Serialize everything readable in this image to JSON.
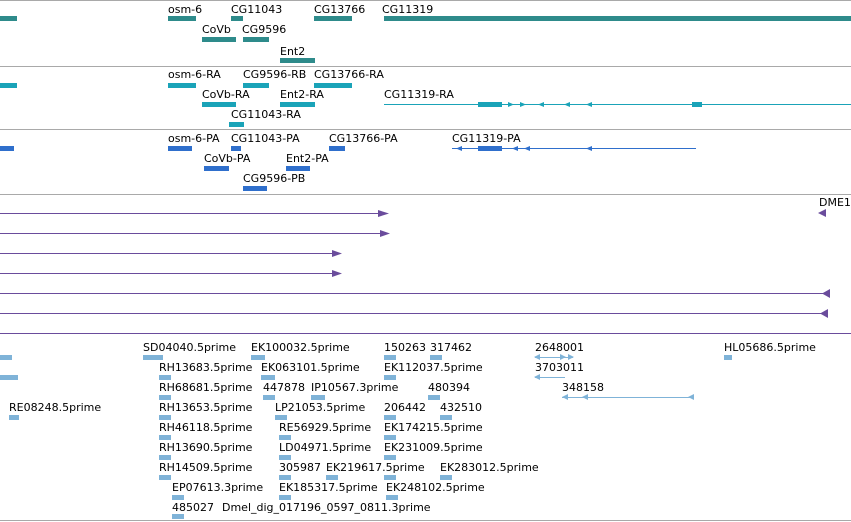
{
  "gene_track": {
    "labels": [
      "osm-6",
      "CG11043",
      "CG13766",
      "CG11319",
      "CoVb",
      "CG9596",
      "Ent2"
    ]
  },
  "transcript_track": {
    "labels": [
      "osm-6-RA",
      "CG9596-RB",
      "CG13766-RA",
      "CoVb-RA",
      "Ent2-RA",
      "CG11319-RA",
      "CG11043-RA"
    ]
  },
  "protein_track": {
    "labels": [
      "osm-6-PA",
      "CG11043-PA",
      "CG13766-PA",
      "CG11319-PA",
      "CoVb-PA",
      "Ent2-PA",
      "CG9596-PB"
    ]
  },
  "alignment_track": {
    "labels": [
      "DME1"
    ]
  },
  "est_track": {
    "labels": [
      "SD04040.5prime",
      "EK100032.5prime",
      "150263",
      "317462",
      "2648001",
      "HL05686.5prime",
      "RH13683.5prime",
      "EK063101.5prime",
      "EK112037.5prime",
      "3703011",
      "RH68681.5prime",
      "447878",
      "IP10567.3prime",
      "480394",
      "348158",
      "RE08248.5prime",
      "RH13653.5prime",
      "LP21053.5prime",
      "206442",
      "432510",
      "RH46118.5prime",
      "RE56929.5prime",
      "EK174215.5prime",
      "RH13690.5prime",
      "LD04971.5prime",
      "EK231009.5prime",
      "RH14509.5prime",
      "305987",
      "EK219617.5prime",
      "EK283012.5prime",
      "EP07613.3prime",
      "EK185317.5prime",
      "EK248102.5prime",
      "485027",
      "Dmel_dig_017196_0597_0811.3prime"
    ]
  },
  "colors": {
    "gene": "#2e8b8b",
    "transcript": "#1aa3b8",
    "protein": "#2f6fcc",
    "alignment": "#6a4c9c",
    "est": "#7fb3d8",
    "separator": "#a9a9a9"
  }
}
